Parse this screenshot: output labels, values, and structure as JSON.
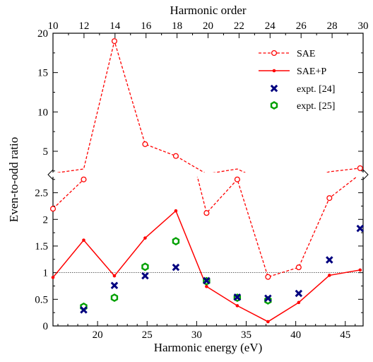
{
  "chart_data": {
    "type": "line",
    "top_axis": {
      "label": "Harmonic order",
      "tick_labels": [
        "10",
        "12",
        "14",
        "16",
        "18",
        "20",
        "22",
        "24",
        "26",
        "28",
        "30"
      ]
    },
    "xlabel": "Harmonic energy (eV)",
    "xlim": [
      15.5,
      46.8
    ],
    "x_ticks": [
      20,
      25,
      30,
      35,
      40,
      45
    ],
    "ylabel": "Even-to-odd ratio",
    "y_axis_break": true,
    "lower_panel": {
      "ylim": [
        0,
        2.8
      ],
      "y_ticks": [
        0,
        0.5,
        1,
        1.5,
        2,
        2.5
      ]
    },
    "upper_panel": {
      "ylim": [
        2.3,
        20
      ],
      "y_ticks": [
        5,
        10,
        15,
        20
      ]
    },
    "reference_line_y": 1,
    "colors": {
      "red": "#ff0000",
      "blue": "#00007f",
      "green": "#00a000"
    },
    "series": [
      {
        "name": "SAE",
        "style": "dashed line with open circles",
        "points": [
          [
            15.5,
            2.2
          ],
          [
            18.6,
            2.75
          ],
          [
            21.7,
            19
          ],
          [
            24.8,
            5.9
          ],
          [
            27.9,
            4.4
          ],
          [
            31.0,
            2.12
          ],
          [
            34.1,
            2.75
          ],
          [
            37.2,
            0.92
          ],
          [
            40.3,
            1.1
          ],
          [
            43.4,
            2.4
          ],
          [
            46.5,
            2.85
          ]
        ]
      },
      {
        "name": "SAE+P",
        "style": "solid line with filled dots",
        "points": [
          [
            15.5,
            0.91
          ],
          [
            18.6,
            1.61
          ],
          [
            21.7,
            0.94
          ],
          [
            24.8,
            1.65
          ],
          [
            27.9,
            2.16
          ],
          [
            31.0,
            0.74
          ],
          [
            34.1,
            0.38
          ],
          [
            37.2,
            0.08
          ],
          [
            40.3,
            0.44
          ],
          [
            43.4,
            0.95
          ],
          [
            46.5,
            1.05
          ]
        ]
      },
      {
        "name": "expt. [24]",
        "style": "blue x markers",
        "points": [
          [
            18.6,
            0.3
          ],
          [
            21.7,
            0.76
          ],
          [
            24.8,
            0.94
          ],
          [
            27.9,
            1.1
          ],
          [
            31.0,
            0.85
          ],
          [
            34.1,
            0.54
          ],
          [
            37.2,
            0.52
          ],
          [
            40.3,
            0.61
          ],
          [
            43.4,
            1.24
          ],
          [
            46.5,
            1.83
          ]
        ]
      },
      {
        "name": "expt. [25]",
        "style": "green open hexagons",
        "points": [
          [
            18.6,
            0.36
          ],
          [
            21.7,
            0.53
          ],
          [
            24.8,
            1.11
          ],
          [
            27.9,
            1.59
          ],
          [
            31.0,
            0.84
          ],
          [
            34.1,
            0.53
          ],
          [
            37.2,
            0.48
          ]
        ]
      }
    ],
    "legend_position": "top-right"
  }
}
